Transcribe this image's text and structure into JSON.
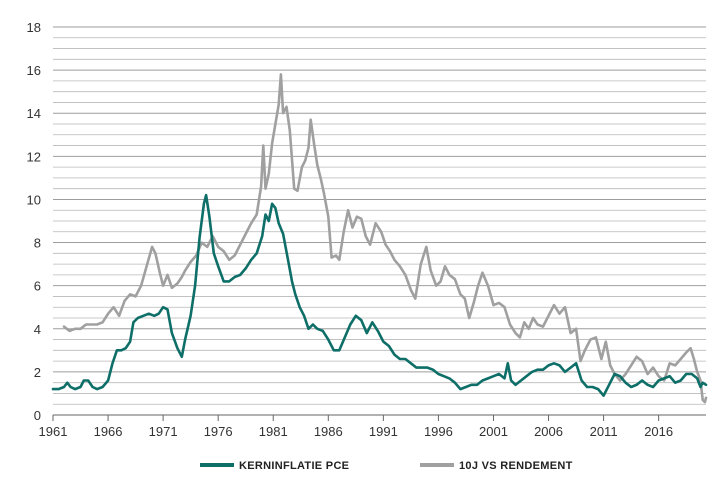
{
  "chart_data": {
    "type": "line",
    "title": "",
    "xlabel": "",
    "ylabel": "",
    "xlim": [
      1961,
      2020.3
    ],
    "ylim": [
      0,
      18
    ],
    "x_ticks": [
      "1961",
      "1966",
      "1971",
      "1976",
      "1981",
      "1986",
      "1991",
      "1996",
      "2001",
      "2006",
      "2011",
      "2016"
    ],
    "y_ticks": [
      "0",
      "2",
      "4",
      "6",
      "8",
      "10",
      "12",
      "14",
      "16",
      "18"
    ],
    "grid": "horizontal",
    "legend_position": "bottom",
    "series": [
      {
        "name": "KERNINFLATIE PCE",
        "color": "#0e6e68",
        "points": [
          [
            1961.0,
            1.2
          ],
          [
            1961.5,
            1.2
          ],
          [
            1962.0,
            1.3
          ],
          [
            1962.3,
            1.5
          ],
          [
            1962.6,
            1.3
          ],
          [
            1963.0,
            1.2
          ],
          [
            1963.5,
            1.3
          ],
          [
            1963.8,
            1.6
          ],
          [
            1964.2,
            1.6
          ],
          [
            1964.6,
            1.3
          ],
          [
            1965.0,
            1.2
          ],
          [
            1965.5,
            1.3
          ],
          [
            1966.0,
            1.6
          ],
          [
            1966.4,
            2.4
          ],
          [
            1966.8,
            3.0
          ],
          [
            1967.2,
            3.0
          ],
          [
            1967.6,
            3.1
          ],
          [
            1968.0,
            3.4
          ],
          [
            1968.3,
            4.3
          ],
          [
            1968.7,
            4.5
          ],
          [
            1969.2,
            4.6
          ],
          [
            1969.7,
            4.7
          ],
          [
            1970.2,
            4.6
          ],
          [
            1970.6,
            4.7
          ],
          [
            1971.0,
            5.0
          ],
          [
            1971.4,
            4.9
          ],
          [
            1971.8,
            3.8
          ],
          [
            1972.3,
            3.1
          ],
          [
            1972.7,
            2.7
          ],
          [
            1973.0,
            3.5
          ],
          [
            1973.5,
            4.6
          ],
          [
            1973.9,
            6.0
          ],
          [
            1974.3,
            8.2
          ],
          [
            1974.7,
            9.8
          ],
          [
            1974.9,
            10.2
          ],
          [
            1975.2,
            9.2
          ],
          [
            1975.6,
            7.5
          ],
          [
            1976.0,
            6.9
          ],
          [
            1976.5,
            6.2
          ],
          [
            1977.0,
            6.2
          ],
          [
            1977.5,
            6.4
          ],
          [
            1978.0,
            6.5
          ],
          [
            1978.5,
            6.8
          ],
          [
            1979.0,
            7.2
          ],
          [
            1979.5,
            7.5
          ],
          [
            1980.0,
            8.3
          ],
          [
            1980.3,
            9.3
          ],
          [
            1980.6,
            9.0
          ],
          [
            1980.9,
            9.8
          ],
          [
            1981.2,
            9.6
          ],
          [
            1981.5,
            8.9
          ],
          [
            1981.9,
            8.4
          ],
          [
            1982.3,
            7.3
          ],
          [
            1982.7,
            6.2
          ],
          [
            1983.0,
            5.6
          ],
          [
            1983.4,
            5.0
          ],
          [
            1983.8,
            4.6
          ],
          [
            1984.2,
            4.0
          ],
          [
            1984.6,
            4.2
          ],
          [
            1985.0,
            4.0
          ],
          [
            1985.5,
            3.9
          ],
          [
            1986.0,
            3.5
          ],
          [
            1986.5,
            3.0
          ],
          [
            1987.0,
            3.0
          ],
          [
            1987.5,
            3.6
          ],
          [
            1988.0,
            4.2
          ],
          [
            1988.5,
            4.6
          ],
          [
            1989.0,
            4.4
          ],
          [
            1989.5,
            3.8
          ],
          [
            1990.0,
            4.3
          ],
          [
            1990.5,
            3.9
          ],
          [
            1991.0,
            3.4
          ],
          [
            1991.5,
            3.2
          ],
          [
            1992.0,
            2.8
          ],
          [
            1992.5,
            2.6
          ],
          [
            1993.0,
            2.6
          ],
          [
            1993.5,
            2.4
          ],
          [
            1994.0,
            2.2
          ],
          [
            1994.5,
            2.2
          ],
          [
            1995.0,
            2.2
          ],
          [
            1995.5,
            2.1
          ],
          [
            1996.0,
            1.9
          ],
          [
            1996.5,
            1.8
          ],
          [
            1997.0,
            1.7
          ],
          [
            1997.5,
            1.5
          ],
          [
            1998.0,
            1.2
          ],
          [
            1998.5,
            1.3
          ],
          [
            1999.0,
            1.4
          ],
          [
            1999.5,
            1.4
          ],
          [
            2000.0,
            1.6
          ],
          [
            2000.5,
            1.7
          ],
          [
            2001.0,
            1.8
          ],
          [
            2001.5,
            1.9
          ],
          [
            2002.0,
            1.7
          ],
          [
            2002.3,
            2.4
          ],
          [
            2002.6,
            1.6
          ],
          [
            2003.0,
            1.4
          ],
          [
            2003.5,
            1.6
          ],
          [
            2004.0,
            1.8
          ],
          [
            2004.5,
            2.0
          ],
          [
            2005.0,
            2.1
          ],
          [
            2005.5,
            2.1
          ],
          [
            2006.0,
            2.3
          ],
          [
            2006.5,
            2.4
          ],
          [
            2007.0,
            2.3
          ],
          [
            2007.5,
            2.0
          ],
          [
            2008.0,
            2.2
          ],
          [
            2008.5,
            2.4
          ],
          [
            2009.0,
            1.6
          ],
          [
            2009.5,
            1.3
          ],
          [
            2010.0,
            1.3
          ],
          [
            2010.5,
            1.2
          ],
          [
            2011.0,
            0.9
          ],
          [
            2011.5,
            1.4
          ],
          [
            2012.0,
            1.9
          ],
          [
            2012.5,
            1.8
          ],
          [
            2013.0,
            1.5
          ],
          [
            2013.5,
            1.3
          ],
          [
            2014.0,
            1.4
          ],
          [
            2014.5,
            1.6
          ],
          [
            2015.0,
            1.4
          ],
          [
            2015.5,
            1.3
          ],
          [
            2016.0,
            1.6
          ],
          [
            2016.5,
            1.7
          ],
          [
            2017.0,
            1.8
          ],
          [
            2017.5,
            1.5
          ],
          [
            2018.0,
            1.6
          ],
          [
            2018.5,
            1.9
          ],
          [
            2019.0,
            1.9
          ],
          [
            2019.5,
            1.7
          ],
          [
            2019.8,
            1.3
          ],
          [
            2020.0,
            1.5
          ],
          [
            2020.3,
            1.4
          ]
        ]
      },
      {
        "name": "10J VS RENDEMENT",
        "color": "#a0a0a0",
        "points": [
          [
            1962.0,
            4.1
          ],
          [
            1962.5,
            3.9
          ],
          [
            1963.0,
            4.0
          ],
          [
            1963.5,
            4.0
          ],
          [
            1964.0,
            4.2
          ],
          [
            1964.5,
            4.2
          ],
          [
            1965.0,
            4.2
          ],
          [
            1965.5,
            4.3
          ],
          [
            1966.0,
            4.7
          ],
          [
            1966.5,
            5.0
          ],
          [
            1967.0,
            4.6
          ],
          [
            1967.5,
            5.3
          ],
          [
            1968.0,
            5.6
          ],
          [
            1968.5,
            5.5
          ],
          [
            1969.0,
            6.0
          ],
          [
            1969.5,
            6.9
          ],
          [
            1970.0,
            7.8
          ],
          [
            1970.3,
            7.5
          ],
          [
            1970.7,
            6.6
          ],
          [
            1971.0,
            6.0
          ],
          [
            1971.4,
            6.5
          ],
          [
            1971.8,
            5.9
          ],
          [
            1972.3,
            6.1
          ],
          [
            1972.7,
            6.4
          ],
          [
            1973.0,
            6.7
          ],
          [
            1973.5,
            7.1
          ],
          [
            1974.0,
            7.4
          ],
          [
            1974.5,
            8.0
          ],
          [
            1975.0,
            7.8
          ],
          [
            1975.5,
            8.3
          ],
          [
            1976.0,
            7.8
          ],
          [
            1976.5,
            7.6
          ],
          [
            1977.0,
            7.2
          ],
          [
            1977.5,
            7.4
          ],
          [
            1978.0,
            7.9
          ],
          [
            1978.5,
            8.4
          ],
          [
            1979.0,
            8.9
          ],
          [
            1979.5,
            9.3
          ],
          [
            1979.9,
            10.6
          ],
          [
            1980.1,
            12.5
          ],
          [
            1980.3,
            10.5
          ],
          [
            1980.6,
            11.2
          ],
          [
            1980.9,
            12.6
          ],
          [
            1981.2,
            13.5
          ],
          [
            1981.5,
            14.4
          ],
          [
            1981.7,
            15.8
          ],
          [
            1981.9,
            14.0
          ],
          [
            1982.2,
            14.3
          ],
          [
            1982.5,
            13.2
          ],
          [
            1982.9,
            10.5
          ],
          [
            1983.2,
            10.4
          ],
          [
            1983.6,
            11.5
          ],
          [
            1983.9,
            11.8
          ],
          [
            1984.2,
            12.4
          ],
          [
            1984.4,
            13.7
          ],
          [
            1984.7,
            12.6
          ],
          [
            1985.0,
            11.6
          ],
          [
            1985.3,
            11.0
          ],
          [
            1985.6,
            10.3
          ],
          [
            1986.0,
            9.2
          ],
          [
            1986.3,
            7.3
          ],
          [
            1986.7,
            7.4
          ],
          [
            1987.0,
            7.2
          ],
          [
            1987.4,
            8.5
          ],
          [
            1987.8,
            9.5
          ],
          [
            1988.2,
            8.7
          ],
          [
            1988.6,
            9.2
          ],
          [
            1989.0,
            9.1
          ],
          [
            1989.4,
            8.3
          ],
          [
            1989.8,
            7.9
          ],
          [
            1990.3,
            8.9
          ],
          [
            1990.8,
            8.5
          ],
          [
            1991.2,
            7.9
          ],
          [
            1991.6,
            7.6
          ],
          [
            1992.0,
            7.2
          ],
          [
            1992.5,
            6.9
          ],
          [
            1993.0,
            6.5
          ],
          [
            1993.5,
            5.8
          ],
          [
            1993.9,
            5.4
          ],
          [
            1994.4,
            7.0
          ],
          [
            1994.9,
            7.8
          ],
          [
            1995.3,
            6.7
          ],
          [
            1995.8,
            6.0
          ],
          [
            1996.2,
            6.2
          ],
          [
            1996.6,
            6.9
          ],
          [
            1997.0,
            6.5
          ],
          [
            1997.5,
            6.3
          ],
          [
            1998.0,
            5.6
          ],
          [
            1998.4,
            5.4
          ],
          [
            1998.8,
            4.5
          ],
          [
            1999.2,
            5.2
          ],
          [
            1999.6,
            6.0
          ],
          [
            2000.0,
            6.6
          ],
          [
            2000.5,
            6.0
          ],
          [
            2001.0,
            5.1
          ],
          [
            2001.5,
            5.2
          ],
          [
            2002.0,
            5.0
          ],
          [
            2002.5,
            4.2
          ],
          [
            2003.0,
            3.8
          ],
          [
            2003.4,
            3.6
          ],
          [
            2003.8,
            4.3
          ],
          [
            2004.2,
            4.0
          ],
          [
            2004.6,
            4.5
          ],
          [
            2005.0,
            4.2
          ],
          [
            2005.5,
            4.1
          ],
          [
            2006.0,
            4.6
          ],
          [
            2006.5,
            5.1
          ],
          [
            2007.0,
            4.7
          ],
          [
            2007.5,
            5.0
          ],
          [
            2008.0,
            3.8
          ],
          [
            2008.5,
            4.0
          ],
          [
            2008.9,
            2.5
          ],
          [
            2009.3,
            3.0
          ],
          [
            2009.8,
            3.5
          ],
          [
            2010.3,
            3.6
          ],
          [
            2010.8,
            2.6
          ],
          [
            2011.2,
            3.4
          ],
          [
            2011.6,
            2.3
          ],
          [
            2012.0,
            1.9
          ],
          [
            2012.5,
            1.6
          ],
          [
            2013.0,
            1.9
          ],
          [
            2013.5,
            2.3
          ],
          [
            2014.0,
            2.7
          ],
          [
            2014.5,
            2.5
          ],
          [
            2015.0,
            1.9
          ],
          [
            2015.5,
            2.2
          ],
          [
            2016.0,
            1.8
          ],
          [
            2016.5,
            1.6
          ],
          [
            2017.0,
            2.4
          ],
          [
            2017.5,
            2.3
          ],
          [
            2018.0,
            2.6
          ],
          [
            2018.5,
            2.9
          ],
          [
            2018.9,
            3.1
          ],
          [
            2019.2,
            2.6
          ],
          [
            2019.5,
            2.0
          ],
          [
            2019.8,
            1.6
          ],
          [
            2020.0,
            0.7
          ],
          [
            2020.2,
            0.6
          ],
          [
            2020.3,
            0.8
          ]
        ]
      }
    ]
  }
}
